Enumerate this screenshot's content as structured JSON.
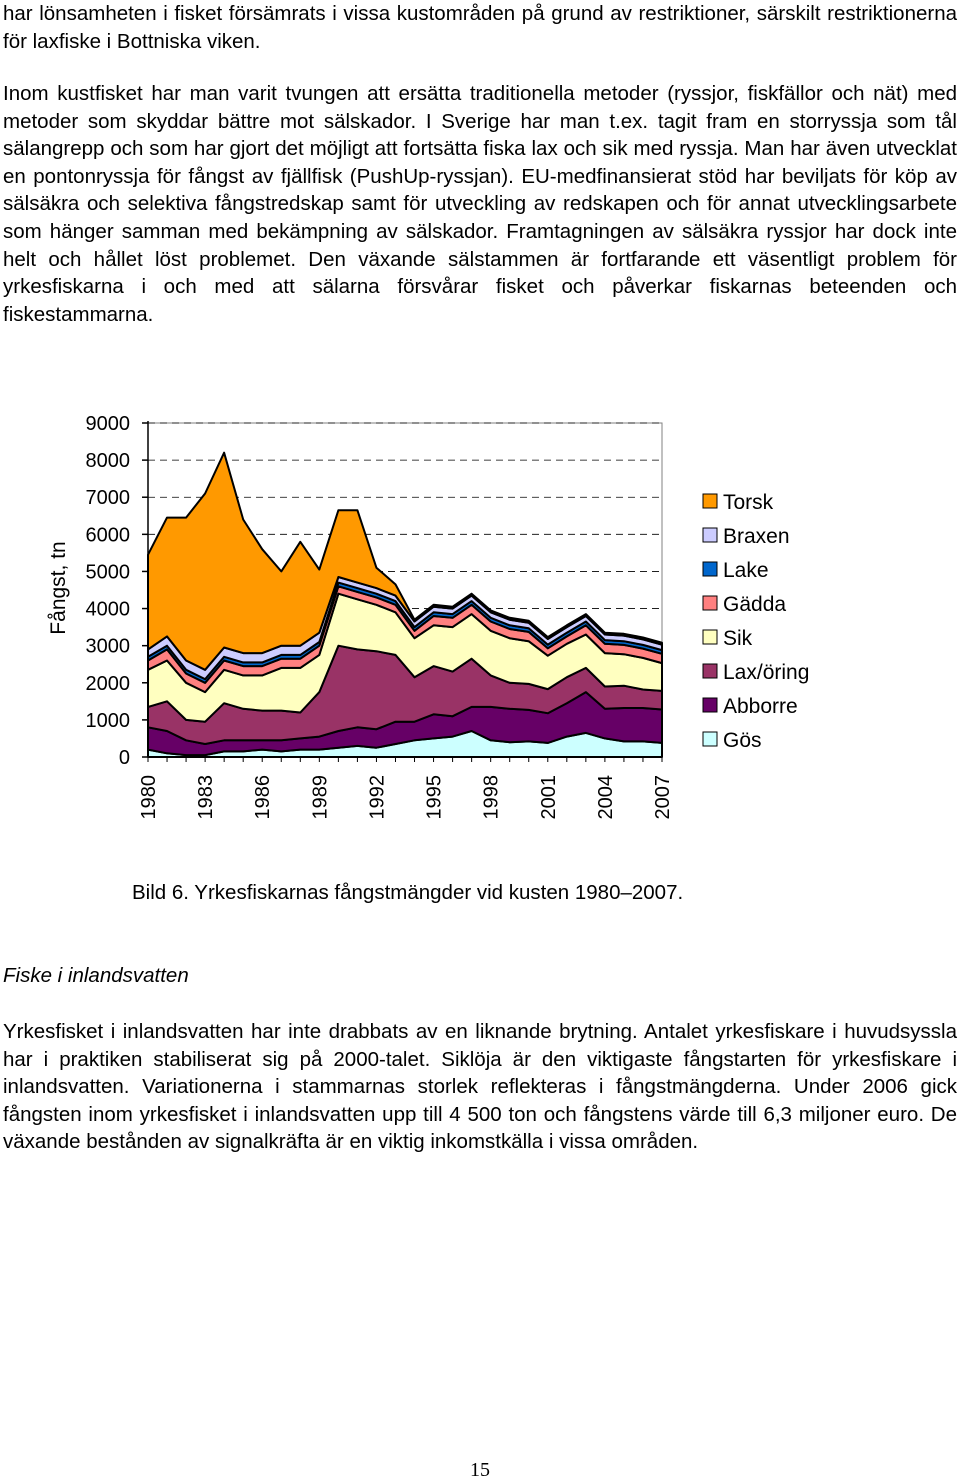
{
  "paragraphs": [
    "har lönsamheten i fisket försämrats i vissa kustområden på grund av restriktioner, särskilt restriktionerna för laxfiske i Bottniska viken.",
    "Inom kustfisket har man varit tvungen att ersätta traditionella metoder (ryssjor, fiskfällor och nät) med metoder som skyddar bättre mot sälskador. I Sverige har man t.ex. tagit fram en storryssja som tål sälangrepp och som har gjort det möjligt att fortsätta fiska lax och sik med ryssja. Man har även utvecklat en pontonryssja för fångst av fjällfisk (PushUp-ryssjan). EU-medfinansierat stöd har beviljats för köp av sälsäkra och selektiva fångstredskap samt för utveckling av redskapen och för annat utvecklingsarbete som hänger samman med bekämpning av sälskador. Framtagningen av sälsäkra ryssjor har dock inte helt och hållet löst problemet. Den växande sälstammen är fortfarande ett väsentligt problem för yrkesfiskarna i och med att sälarna försvårar fisket och påverkar fiskarnas beteenden och fiskestammarna.",
    "Yrkesfisket i inlandsvatten har inte drabbats av en liknande brytning. Antalet yrkesfiskare i huvudsyssla har i praktiken stabiliserat sig på 2000-talet. Siklöja är den viktigaste fångstarten för yrkesfiskare i inlandsvatten. Variationerna i stammarnas storlek reflekteras i fångstmängderna. Under 2006 gick fångsten inom yrkesfisket i inlandsvatten upp till 4 500 ton och fångstens värde till 6,3 miljoner euro. De växande bestånden av signalkräfta är en viktig inkomstkälla i vissa områden."
  ],
  "caption": "Bild 6. Yrkesfiskarnas fångstmängder vid kusten 1980–2007.",
  "heading": "Fiske i inlandsvatten",
  "page_number": "15",
  "chart_data": {
    "type": "area",
    "stacked": true,
    "title": "",
    "xlabel": "",
    "ylabel": "Fångst, tn",
    "ylim": [
      0,
      9000
    ],
    "yticks": [
      0,
      1000,
      2000,
      3000,
      4000,
      5000,
      6000,
      7000,
      8000,
      9000
    ],
    "xtick_labels": [
      "1980",
      "1983",
      "1986",
      "1989",
      "1992",
      "1995",
      "1998",
      "2001",
      "2004",
      "2007"
    ],
    "grid": "horizontal dashed",
    "legend_position": "right",
    "x": [
      1980,
      1981,
      1982,
      1983,
      1984,
      1985,
      1986,
      1987,
      1988,
      1989,
      1990,
      1991,
      1992,
      1993,
      1994,
      1995,
      1996,
      1997,
      1998,
      1999,
      2000,
      2001,
      2002,
      2003,
      2004,
      2005,
      2006,
      2007
    ],
    "series": [
      {
        "name": "Gös",
        "color": "#CCFFFF",
        "values": [
          200,
          100,
          50,
          50,
          150,
          150,
          200,
          150,
          200,
          200,
          250,
          300,
          250,
          350,
          450,
          500,
          550,
          700,
          450,
          400,
          420,
          380,
          550,
          650,
          500,
          420,
          420,
          380
        ]
      },
      {
        "name": "Abborre",
        "color": "#660066",
        "values": [
          600,
          600,
          400,
          300,
          300,
          300,
          250,
          300,
          300,
          350,
          450,
          500,
          500,
          600,
          500,
          650,
          550,
          650,
          900,
          900,
          850,
          800,
          900,
          1100,
          800,
          900,
          900,
          900
        ]
      },
      {
        "name": "Lax/öring",
        "color": "#993366",
        "values": [
          550,
          800,
          550,
          600,
          1000,
          850,
          800,
          800,
          700,
          1200,
          2300,
          2100,
          2100,
          1800,
          1200,
          1300,
          1200,
          1300,
          850,
          700,
          700,
          650,
          700,
          650,
          600,
          600,
          500,
          500
        ]
      },
      {
        "name": "Sik",
        "color": "#FFFFC0",
        "values": [
          1000,
          1100,
          1000,
          800,
          900,
          900,
          950,
          1150,
          1200,
          1000,
          1400,
          1350,
          1250,
          1150,
          1050,
          1100,
          1200,
          1200,
          1200,
          1200,
          1150,
          900,
          900,
          900,
          900,
          850,
          850,
          750
        ]
      },
      {
        "name": "Gädda",
        "color": "#FF8080",
        "values": [
          250,
          300,
          250,
          250,
          250,
          250,
          250,
          250,
          250,
          250,
          200,
          200,
          200,
          200,
          200,
          250,
          250,
          250,
          250,
          250,
          250,
          200,
          200,
          250,
          250,
          250,
          250,
          250
        ]
      },
      {
        "name": "Lake",
        "color": "#0066CC",
        "values": [
          100,
          100,
          100,
          100,
          100,
          100,
          100,
          100,
          100,
          100,
          100,
          100,
          100,
          100,
          100,
          100,
          100,
          100,
          100,
          100,
          100,
          100,
          100,
          100,
          100,
          100,
          100,
          100
        ]
      },
      {
        "name": "Braxen",
        "color": "#CCCCFF",
        "values": [
          200,
          250,
          250,
          250,
          250,
          250,
          250,
          250,
          250,
          250,
          150,
          150,
          150,
          150,
          150,
          150,
          150,
          150,
          150,
          150,
          150,
          150,
          150,
          150,
          150,
          150,
          150,
          150
        ]
      },
      {
        "name": "Torsk",
        "color": "#FF9900",
        "values": [
          2550,
          3200,
          3850,
          4750,
          5250,
          3600,
          2800,
          2000,
          2800,
          1700,
          1800,
          1950,
          550,
          300,
          50,
          50,
          50,
          50,
          50,
          50,
          50,
          50,
          50,
          50,
          50,
          50,
          50,
          50
        ]
      }
    ]
  }
}
